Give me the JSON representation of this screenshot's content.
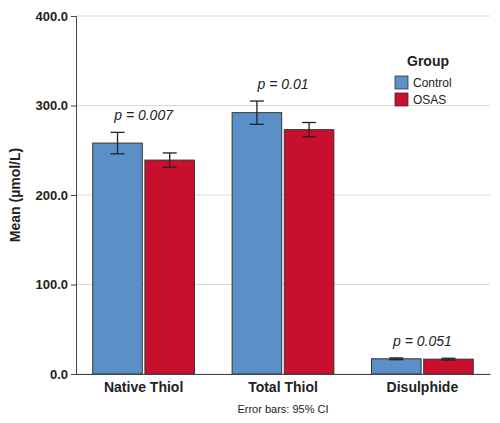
{
  "chart_data": {
    "type": "bar",
    "categories": [
      "Native Thiol",
      "Total Thiol",
      "Disulphide"
    ],
    "y_label": "Mean (µmol/L)",
    "ylim": [
      0,
      400
    ],
    "yticks": [
      {
        "value": 0,
        "label": "0.0"
      },
      {
        "value": 100,
        "label": "100.0"
      },
      {
        "value": 200,
        "label": "200.0"
      },
      {
        "value": 300,
        "label": "300.0"
      },
      {
        "value": 400,
        "label": "400.0"
      }
    ],
    "grid": true,
    "legend": "top-right",
    "legend_title": "Group",
    "series": [
      {
        "name": "Control",
        "color": "#5b8fc7",
        "values": [
          258,
          292,
          17
        ],
        "errors": [
          12,
          13,
          1
        ]
      },
      {
        "name": "OSAS",
        "color": "#c8102e",
        "values": [
          239,
          273,
          16.6
        ],
        "errors": [
          8,
          8,
          1
        ]
      }
    ],
    "annotations": [
      {
        "text": "p = 0.007",
        "category": "Native Thiol"
      },
      {
        "text": "p = 0.01",
        "category": "Total Thiol"
      },
      {
        "text": "p = 0.051",
        "category": "Disulphide"
      }
    ],
    "note": "Error bars: 95% CI"
  }
}
